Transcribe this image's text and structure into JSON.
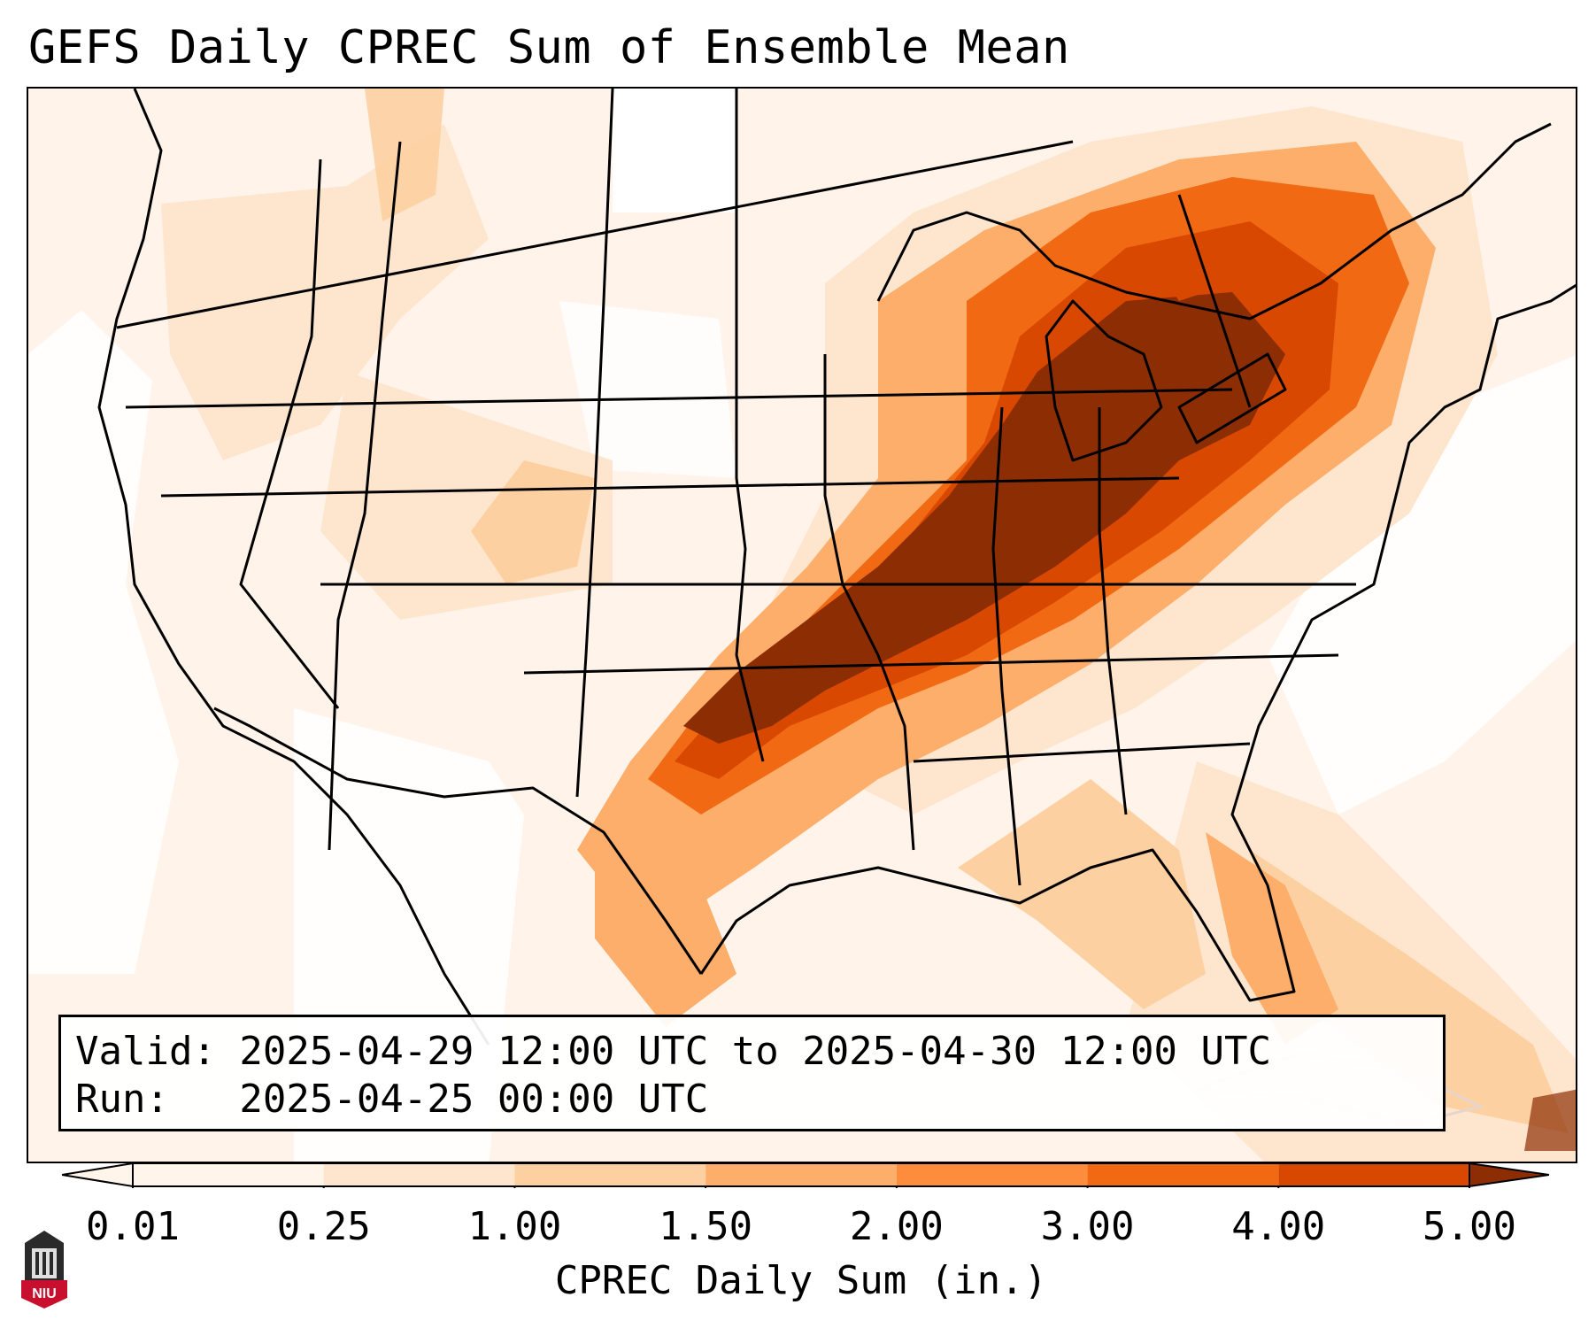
{
  "title": "GEFS Daily CPREC Sum of Ensemble Mean",
  "valid_line": "Valid: 2025-04-29 12:00 UTC to 2025-04-30 12:00 UTC",
  "run_line": "Run:   2025-04-25 00:00 UTC",
  "colorbar": {
    "label": "CPREC Daily Sum (in.)",
    "ticks": [
      "0.01",
      "0.25",
      "1.00",
      "1.50",
      "2.00",
      "3.00",
      "4.00",
      "5.00"
    ],
    "colors": [
      "#fff5eb",
      "#fee6ce",
      "#fdd0a2",
      "#fdae6b",
      "#fd8d3c",
      "#f16913",
      "#d94801",
      "#8c2d04"
    ],
    "extend": "both"
  },
  "legend_levels": {
    "background": "#fff3ea",
    "low": "#fee6ce",
    "mid": "#fdd0a2",
    "orange": "#fdae6b",
    "deep_orange": "#f16913",
    "burnt": "#d94801",
    "max": "#8c2d04"
  },
  "logo": {
    "text": "NIU",
    "icon": "niu-logo-icon"
  }
}
